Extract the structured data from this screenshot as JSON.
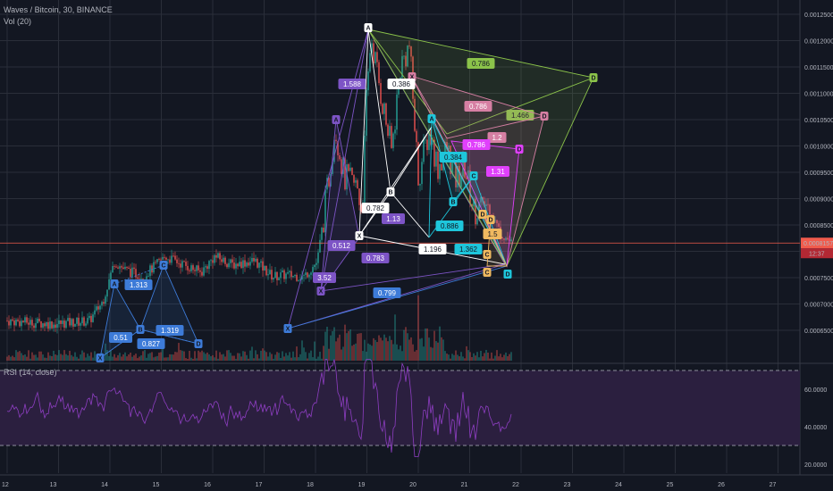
{
  "header": {
    "symbol_line": "Waves / Bitcoin, 30, BINANCE",
    "volume_line": "Vol (20)"
  },
  "rsi": {
    "legend": "RSI (14, close)",
    "upper": 70,
    "lower": 30,
    "ticks": [
      "60.0000",
      "40.0000",
      "20.0000"
    ]
  },
  "price_axis": {
    "ticks": [
      "0.0012500",
      "0.0012000",
      "0.0011500",
      "0.0011000",
      "0.0010500",
      "0.0010000",
      "0.0009500",
      "0.0009000",
      "0.0008500",
      "0.0008000",
      "0.0007500",
      "0.0007000",
      "0.0006500"
    ],
    "current_price": "0.0008157",
    "countdown": "12:37"
  },
  "time_axis": {
    "labels": [
      "12",
      "13",
      "14",
      "15",
      "16",
      "17",
      "18",
      "19",
      "20",
      "21",
      "22",
      "23",
      "24",
      "25",
      "26",
      "27"
    ]
  },
  "colors": {
    "background": "#131722",
    "grid": "#2a2e39",
    "up": "#26a69a",
    "down": "#ef5350",
    "rsi_line": "#8e3ec2",
    "rsi_band": "#2b1f3f",
    "price_line": "#f15b4c",
    "blue": "#3d7bd8",
    "purple": "#7d54c6",
    "green": "#8bc34a",
    "pink": "#d67fa3",
    "magenta": "#e040fb",
    "cyan": "#1ec6db",
    "white": "#ffffff",
    "orange": "#f0b960"
  },
  "patterns": [
    {
      "color": "blue",
      "point_labels": [
        "X",
        "A",
        "B",
        "C",
        "D"
      ],
      "ratio_labels": [
        "1.313",
        "0.51",
        "0.827",
        "1.319"
      ]
    },
    {
      "color": "purple",
      "point_labels": [
        "X",
        "A",
        "X",
        "A"
      ],
      "ratio_labels": [
        "1.588",
        "0.512",
        "3.52",
        "0.783",
        "1.13"
      ]
    },
    {
      "color": "blue",
      "point_labels": [
        "X",
        "D"
      ],
      "ratio_labels": [
        "0.799"
      ]
    },
    {
      "color": "green",
      "point_labels": [
        "A",
        "D"
      ],
      "ratio_labels": [
        "0.786",
        "1.466"
      ]
    },
    {
      "color": "pink",
      "point_labels": [
        "X",
        "D"
      ],
      "ratio_labels": [
        "0.786",
        "1.2"
      ]
    },
    {
      "color": "magenta",
      "point_labels": [
        "D"
      ],
      "ratio_labels": [
        "0.786",
        "1.31"
      ]
    },
    {
      "color": "white",
      "point_labels": [
        "B",
        "X"
      ],
      "ratio_labels": [
        "0.386",
        "0.782",
        "1.196"
      ]
    },
    {
      "color": "cyan",
      "point_labels": [
        "A",
        "B",
        "C",
        "D"
      ],
      "ratio_labels": [
        "0.384",
        "0.886",
        "1.362"
      ]
    },
    {
      "color": "orange",
      "point_labels": [
        "D",
        "C",
        "D",
        "C"
      ],
      "ratio_labels": [
        "1.5"
      ]
    }
  ]
}
